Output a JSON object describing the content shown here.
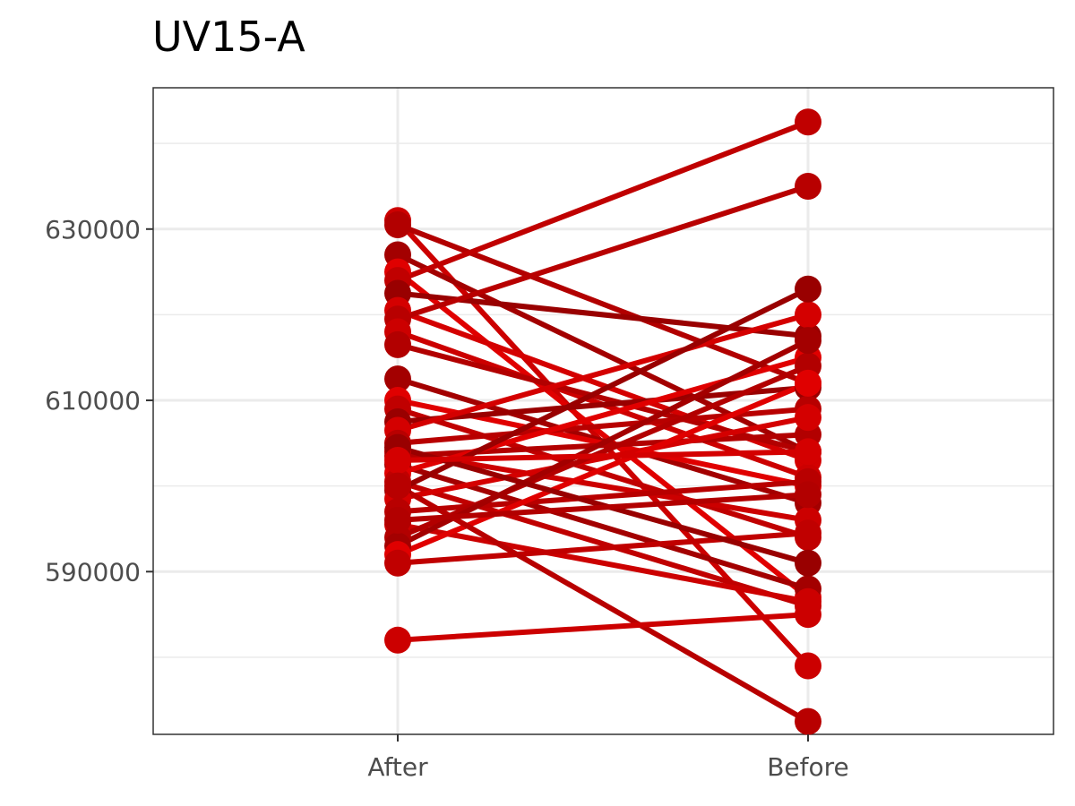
{
  "chart_data": {
    "type": "line",
    "title": "UV15-A",
    "xlabel": "",
    "ylabel": "",
    "categories": [
      "After",
      "Before"
    ],
    "yticks": [
      590000,
      610000,
      630000
    ],
    "ylim": [
      571000,
      646500
    ],
    "grid": true,
    "legend": "none",
    "colors": [
      "#cc0000",
      "#b20000",
      "#a30000",
      "#e00000",
      "#c00000",
      "#990000",
      "#d40000",
      "#b80000"
    ],
    "pairs": [
      {
        "after": 631000,
        "before": 579000
      },
      {
        "after": 630500,
        "before": 612000
      },
      {
        "after": 627000,
        "before": 604000
      },
      {
        "after": 625000,
        "before": 587000
      },
      {
        "after": 624000,
        "before": 642500
      },
      {
        "after": 622500,
        "before": 617500
      },
      {
        "after": 620500,
        "before": 603000
      },
      {
        "after": 619500,
        "before": 635000
      },
      {
        "after": 618000,
        "before": 601000
      },
      {
        "after": 616500,
        "before": 604000
      },
      {
        "after": 612500,
        "before": 598000
      },
      {
        "after": 610000,
        "before": 600000
      },
      {
        "after": 609000,
        "before": 594000
      },
      {
        "after": 607500,
        "before": 611500
      },
      {
        "after": 606500,
        "before": 620000
      },
      {
        "after": 605000,
        "before": 609000
      },
      {
        "after": 604000,
        "before": 596000
      },
      {
        "after": 603500,
        "before": 606000
      },
      {
        "after": 602500,
        "before": 588000
      },
      {
        "after": 601500,
        "before": 615000
      },
      {
        "after": 600500,
        "before": 586000
      },
      {
        "after": 599500,
        "before": 623000
      },
      {
        "after": 598500,
        "before": 608000
      },
      {
        "after": 597000,
        "before": 600500
      },
      {
        "after": 595500,
        "before": 586500
      },
      {
        "after": 594000,
        "before": 614000
      },
      {
        "after": 593000,
        "before": 617000
      },
      {
        "after": 592000,
        "before": 612000
      },
      {
        "after": 591000,
        "before": 594500
      },
      {
        "after": 604500,
        "before": 591000
      },
      {
        "after": 603000,
        "before": 604000
      },
      {
        "after": 600000,
        "before": 572500
      },
      {
        "after": 582000,
        "before": 585000
      },
      {
        "after": 596000,
        "before": 599000
      }
    ]
  }
}
